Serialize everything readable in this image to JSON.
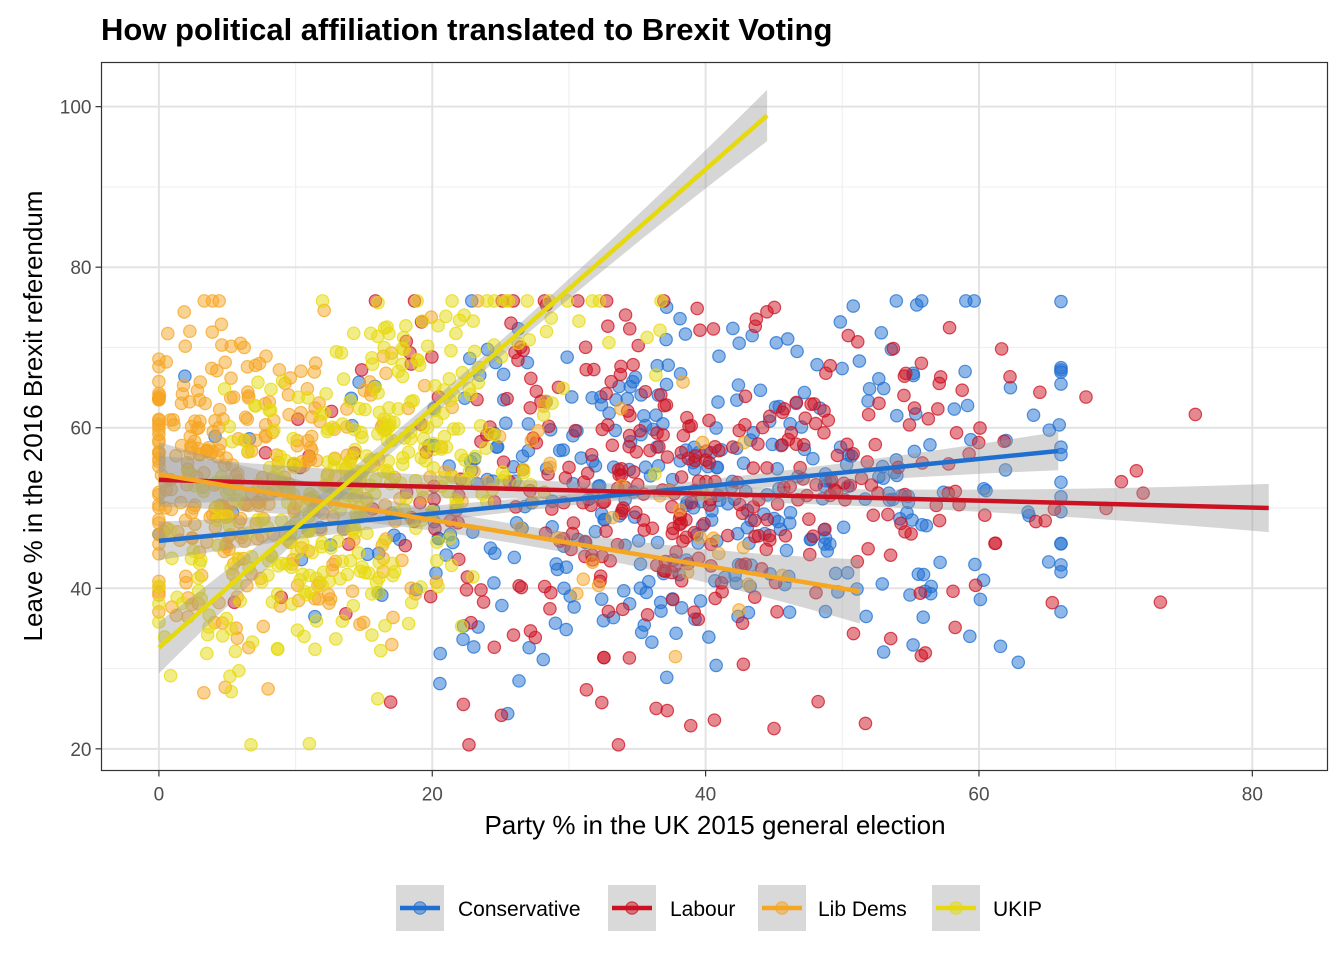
{
  "chart_data": {
    "type": "scatter",
    "title": "How political affiliation translated to Brexit Voting",
    "xlabel": "Party % in the UK 2015 general election",
    "ylabel": "Leave % in the 2016 Brexit referendum",
    "xlim": [
      -4.2,
      85.5
    ],
    "ylim": [
      17.3,
      105.5
    ],
    "x_ticks": [
      0,
      20,
      40,
      60,
      80
    ],
    "y_ticks": [
      20,
      40,
      60,
      80,
      100
    ],
    "x_minor": [
      10,
      30,
      50,
      70
    ],
    "y_minor": [
      30,
      50,
      70,
      90
    ],
    "grid": true,
    "legend_position": "bottom",
    "points_per_constituency_set": "approx",
    "series": [
      {
        "name": "Conservative",
        "color": "#1f6fd1",
        "x_range": [
          0,
          66
        ],
        "cluster": {
          "x_center": 40,
          "x_spread": 14,
          "y_center": 51,
          "y_spread": 11
        },
        "fit": {
          "x": [
            0,
            65.8
          ],
          "y": [
            45.9,
            57.1
          ],
          "se": 1.2
        }
      },
      {
        "name": "Labour",
        "color": "#cc1122",
        "x_range": [
          0,
          81.2
        ],
        "cluster": {
          "x_center": 38,
          "x_spread": 13,
          "y_center": 52,
          "y_spread": 11
        },
        "fit": {
          "x": [
            0,
            81.2
          ],
          "y": [
            53.5,
            50.0
          ],
          "se": 1.5
        }
      },
      {
        "name": "Lib Dems",
        "color": "#f5a623",
        "x_range": [
          0,
          51.3
        ],
        "cluster": {
          "x_center": 6,
          "x_spread": 6,
          "y_center": 57,
          "y_spread": 10
        },
        "fit": {
          "x": [
            0,
            51.3
          ],
          "y": [
            54.2,
            39.6
          ],
          "se": 2.0
        }
      },
      {
        "name": "UKIP",
        "color": "#e6d90e",
        "x_range": [
          0,
          44.5
        ],
        "cluster": {
          "x_center": 14,
          "x_spread": 6,
          "y_center": 52,
          "y_spread": 10
        },
        "fit": {
          "x": [
            0,
            44.5
          ],
          "y": [
            32.6,
            98.9
          ],
          "se": 1.6
        }
      }
    ]
  }
}
